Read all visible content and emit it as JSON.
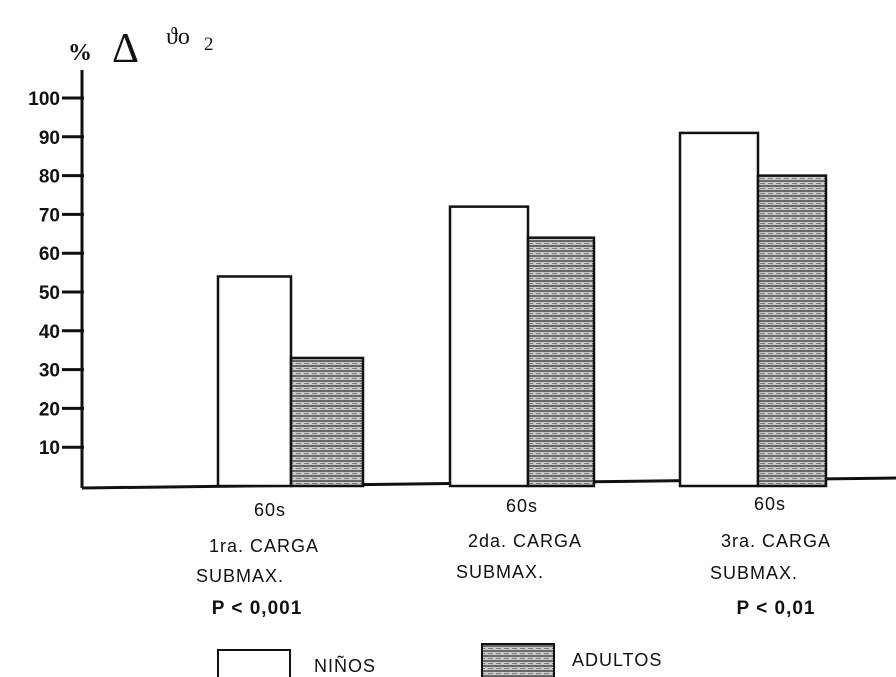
{
  "chart_data": {
    "type": "bar",
    "ylabel": {
      "percent": "%",
      "delta": "Δ",
      "symbol": "ϑo",
      "subscript": "2"
    },
    "ylim": [
      0,
      100
    ],
    "yticks": [
      10,
      20,
      30,
      40,
      50,
      60,
      70,
      80,
      90,
      100
    ],
    "yticks_labels": [
      "10",
      "20",
      "30",
      "40",
      "50",
      "60",
      "70",
      "80",
      "90",
      "100"
    ],
    "categories": [
      {
        "time": "60s",
        "line1": "1ra. CARGA",
        "line2": "SUBMAX.",
        "p_value": "P < 0,001"
      },
      {
        "time": "60s",
        "line1": "2da. CARGA",
        "line2": "SUBMAX.",
        "p_value": ""
      },
      {
        "time": "60s",
        "line1": "3ra. CARGA",
        "line2": "SUBMAX.",
        "p_value": "P < 0,01"
      }
    ],
    "series": [
      {
        "name": "NIÑOS",
        "values": [
          54,
          72,
          91
        ],
        "fill": "#ffffff"
      },
      {
        "name": "ADULTOS",
        "values": [
          33,
          64,
          80
        ],
        "fill": "#b5b5b5"
      }
    ],
    "grid": false,
    "legend_position": "bottom"
  }
}
